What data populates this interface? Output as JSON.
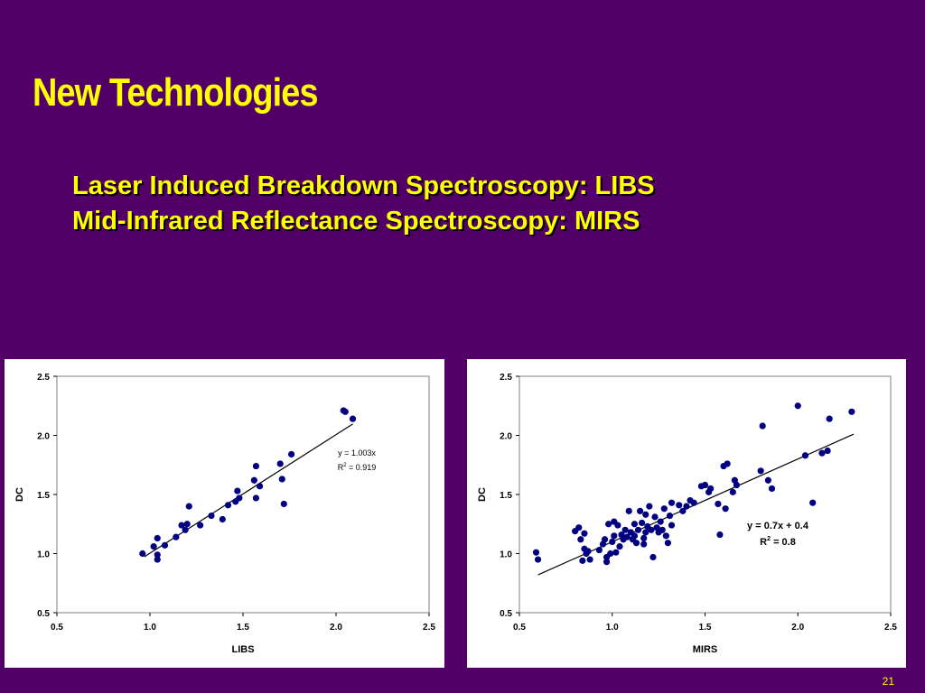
{
  "slide": {
    "title": "New Technologies",
    "subtitle_lines": [
      "Laser Induced Breakdown Spectroscopy: LIBS",
      "Mid-Infrared Reflectance Spectroscopy: MIRS"
    ],
    "page_number": "21"
  },
  "colors": {
    "background": "#520068",
    "title": "#FFFF00",
    "marker": "#000080",
    "trendline": "#000000"
  },
  "chart_data": [
    {
      "type": "scatter",
      "title": "",
      "xlabel": "LIBS",
      "ylabel": "DC",
      "xlim": [
        0.5,
        2.5
      ],
      "ylim": [
        0.5,
        2.5
      ],
      "xticks": [
        "0.5",
        "1.0",
        "1.5",
        "2.0",
        "2.5"
      ],
      "yticks": [
        "0.5",
        "1.0",
        "1.5",
        "2.0",
        "2.5"
      ],
      "grid": false,
      "trendline": {
        "slope": 1.003,
        "intercept": 0,
        "x_range": [
          0.97,
          2.09
        ]
      },
      "annotation": {
        "equation": "y = 1.003x",
        "r2_label": "R",
        "r2_value": " = 0.919"
      },
      "points": [
        [
          0.96,
          1.0
        ],
        [
          1.02,
          1.06
        ],
        [
          1.04,
          1.13
        ],
        [
          1.04,
          0.99
        ],
        [
          1.04,
          0.95
        ],
        [
          1.08,
          1.07
        ],
        [
          1.14,
          1.14
        ],
        [
          1.17,
          1.24
        ],
        [
          1.19,
          1.2
        ],
        [
          1.2,
          1.25
        ],
        [
          1.21,
          1.4
        ],
        [
          1.27,
          1.24
        ],
        [
          1.33,
          1.32
        ],
        [
          1.39,
          1.29
        ],
        [
          1.42,
          1.41
        ],
        [
          1.46,
          1.44
        ],
        [
          1.47,
          1.53
        ],
        [
          1.48,
          1.47
        ],
        [
          1.56,
          1.62
        ],
        [
          1.57,
          1.74
        ],
        [
          1.57,
          1.47
        ],
        [
          1.59,
          1.57
        ],
        [
          1.7,
          1.76
        ],
        [
          1.71,
          1.63
        ],
        [
          1.72,
          1.42
        ],
        [
          1.76,
          1.84
        ],
        [
          2.04,
          2.21
        ],
        [
          2.05,
          2.2
        ],
        [
          2.09,
          2.14
        ]
      ]
    },
    {
      "type": "scatter",
      "title": "",
      "xlabel": "MIRS",
      "ylabel": "DC",
      "xlim": [
        0.5,
        2.5
      ],
      "ylim": [
        0.5,
        2.5
      ],
      "xticks": [
        "0.5",
        "1.0",
        "1.5",
        "2.0",
        "2.5"
      ],
      "yticks": [
        "0.5",
        "1.0",
        "1.5",
        "2.0",
        "2.5"
      ],
      "grid": false,
      "trendline": {
        "slope": 0.7,
        "intercept": 0.4,
        "x_range": [
          0.6,
          2.3
        ]
      },
      "annotation": {
        "equation": "y = 0.7x + 0.4",
        "r2_label": "R",
        "r2_value": " = 0.8"
      },
      "points": [
        [
          0.59,
          1.01
        ],
        [
          0.6,
          0.95
        ],
        [
          0.8,
          1.19
        ],
        [
          0.82,
          1.22
        ],
        [
          0.83,
          1.12
        ],
        [
          0.84,
          0.94
        ],
        [
          0.85,
          1.04
        ],
        [
          0.85,
          1.17
        ],
        [
          0.86,
          1.0
        ],
        [
          0.87,
          1.02
        ],
        [
          0.88,
          0.95
        ],
        [
          0.93,
          1.03
        ],
        [
          0.95,
          1.08
        ],
        [
          0.96,
          1.12
        ],
        [
          0.97,
          0.97
        ],
        [
          0.97,
          0.93
        ],
        [
          0.98,
          1.25
        ],
        [
          0.99,
          1.0
        ],
        [
          1.0,
          1.1
        ],
        [
          1.01,
          1.15
        ],
        [
          1.01,
          1.27
        ],
        [
          1.02,
          1.01
        ],
        [
          1.03,
          1.24
        ],
        [
          1.04,
          1.06
        ],
        [
          1.05,
          1.16
        ],
        [
          1.06,
          1.12
        ],
        [
          1.07,
          1.2
        ],
        [
          1.08,
          1.14
        ],
        [
          1.09,
          1.36
        ],
        [
          1.1,
          1.18
        ],
        [
          1.11,
          1.12
        ],
        [
          1.12,
          1.15
        ],
        [
          1.12,
          1.25
        ],
        [
          1.13,
          1.09
        ],
        [
          1.14,
          1.2
        ],
        [
          1.15,
          1.36
        ],
        [
          1.16,
          1.26
        ],
        [
          1.17,
          1.08
        ],
        [
          1.17,
          1.13
        ],
        [
          1.18,
          1.18
        ],
        [
          1.18,
          1.33
        ],
        [
          1.19,
          1.23
        ],
        [
          1.2,
          1.4
        ],
        [
          1.21,
          1.2
        ],
        [
          1.22,
          0.97
        ],
        [
          1.23,
          1.31
        ],
        [
          1.24,
          1.22
        ],
        [
          1.25,
          1.18
        ],
        [
          1.26,
          1.27
        ],
        [
          1.27,
          1.2
        ],
        [
          1.28,
          1.38
        ],
        [
          1.29,
          1.15
        ],
        [
          1.3,
          1.09
        ],
        [
          1.31,
          1.32
        ],
        [
          1.32,
          1.43
        ],
        [
          1.32,
          1.24
        ],
        [
          1.36,
          1.41
        ],
        [
          1.38,
          1.36
        ],
        [
          1.4,
          1.4
        ],
        [
          1.42,
          1.45
        ],
        [
          1.44,
          1.43
        ],
        [
          1.48,
          1.57
        ],
        [
          1.5,
          1.58
        ],
        [
          1.52,
          1.52
        ],
        [
          1.53,
          1.55
        ],
        [
          1.57,
          1.42
        ],
        [
          1.58,
          1.16
        ],
        [
          1.6,
          1.74
        ],
        [
          1.61,
          1.38
        ],
        [
          1.62,
          1.76
        ],
        [
          1.65,
          1.52
        ],
        [
          1.66,
          1.62
        ],
        [
          1.67,
          1.58
        ],
        [
          1.8,
          1.7
        ],
        [
          1.81,
          2.08
        ],
        [
          1.84,
          1.62
        ],
        [
          1.86,
          1.55
        ],
        [
          2.0,
          2.25
        ],
        [
          2.04,
          1.83
        ],
        [
          2.08,
          1.43
        ],
        [
          2.13,
          1.85
        ],
        [
          2.16,
          1.87
        ],
        [
          2.17,
          2.14
        ],
        [
          2.29,
          2.2
        ]
      ]
    }
  ]
}
